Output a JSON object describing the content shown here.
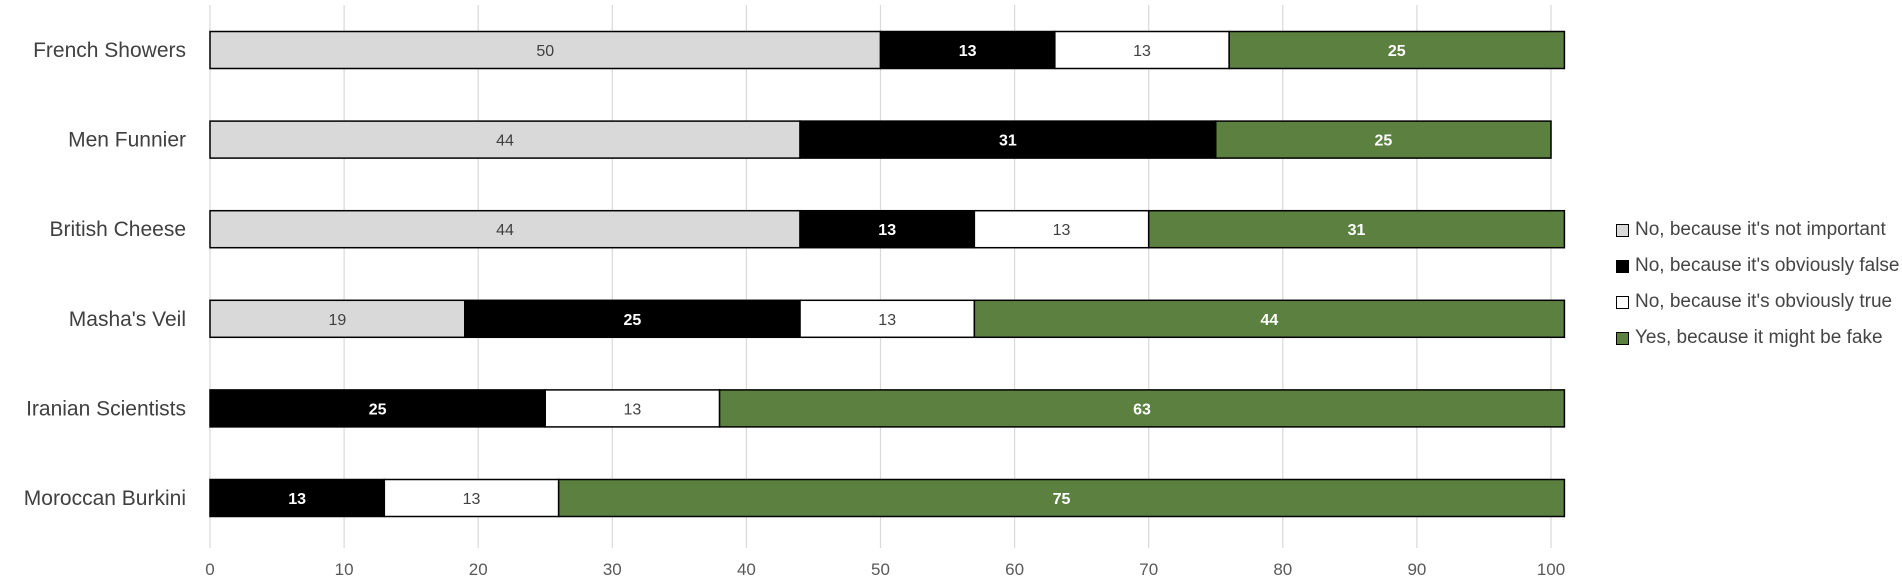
{
  "chart_data": {
    "type": "bar",
    "orientation": "horizontal",
    "stacked": true,
    "title": "",
    "xlabel": "",
    "ylabel": "",
    "xlim": [
      0,
      100
    ],
    "x_ticks": [
      0,
      10,
      20,
      30,
      40,
      50,
      60,
      70,
      80,
      90,
      100
    ],
    "grid": "vertical",
    "legend_position": "right",
    "categories": [
      "French Showers",
      "Men Funnier",
      "British Cheese",
      "Masha's Veil",
      "Iranian Scientists",
      "Moroccan Burkini"
    ],
    "series": [
      {
        "name": "No, because it's not important",
        "color": "#d9d9d9",
        "label_color": "#404040",
        "values": [
          50,
          44,
          44,
          19,
          0,
          0
        ]
      },
      {
        "name": "No, because it's obviously false",
        "color": "#000000",
        "label_color": "#ffffff",
        "values": [
          13,
          31,
          13,
          25,
          25,
          13
        ]
      },
      {
        "name": "No, because it's obviously true",
        "color": "#ffffff",
        "label_color": "#404040",
        "values": [
          13,
          0,
          13,
          13,
          13,
          13
        ]
      },
      {
        "name": "Yes, because it might be fake",
        "color": "#5b8040",
        "label_color": "#ffffff",
        "values": [
          25,
          25,
          31,
          44,
          63,
          75
        ]
      }
    ]
  }
}
